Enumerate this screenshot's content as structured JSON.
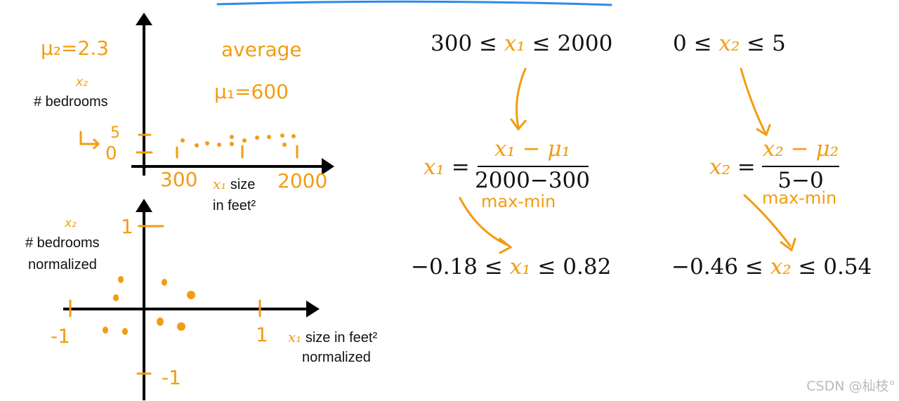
{
  "top_plot": {
    "mu2_note": "μ₂=2.3",
    "average_note": "average",
    "mu1_note": "μ₁=600",
    "y_label_var": "x₂",
    "y_label": "# bedrooms",
    "y_tick_high": "5",
    "y_tick_low": "0",
    "x_tick_low": "300",
    "x_tick_high": "2000",
    "x_label_var": "x₁",
    "x_label": "size",
    "x_label_line2": "in feet²"
  },
  "bottom_plot": {
    "y_label_var": "x₂",
    "y_label": "# bedrooms",
    "y_label_line2": "normalized",
    "y_tick_high": "1",
    "y_tick_low": "-1",
    "x_tick_low": "-1",
    "x_tick_high": "1",
    "x_label_var": "x₁",
    "x_label": "size in feet²",
    "x_label_line2": "normalized"
  },
  "range_x1": {
    "left": "300 ≤ ",
    "var": "x₁",
    "right": " ≤ 2000"
  },
  "range_x2": {
    "left": "0 ≤ ",
    "var": "x₂",
    "right": " ≤ 5"
  },
  "formula_x1": {
    "lhs": "x₁",
    "eq": " =",
    "numerator": "x₁ − μ₁",
    "denominator": "2000−300",
    "note": "max-min"
  },
  "formula_x2": {
    "lhs": "x₂",
    "eq": " =",
    "numerator": "x₂ − μ₂",
    "denominator": "5−0",
    "note": "max-min"
  },
  "result_x1": {
    "left": "−0.18 ≤ ",
    "var": "x₁",
    "right": " ≤ 0.82"
  },
  "result_x2": {
    "left": "−0.46 ≤ ",
    "var": "x₂",
    "right": " ≤ 0.54"
  },
  "watermark": "CSDN @杣枝°"
}
